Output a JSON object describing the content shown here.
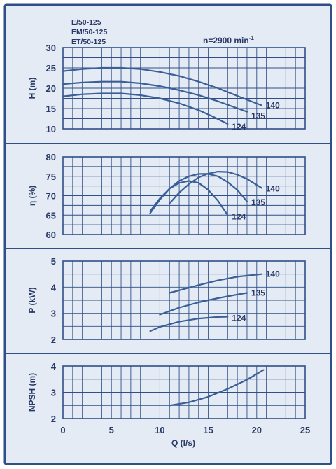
{
  "colors": {
    "background": "#e4ebf5",
    "frame": "#2f4f86",
    "grid": "#2f4f86",
    "curve": "#3a5f97",
    "text": "#2a3a66"
  },
  "header": {
    "models": [
      "E/50-125",
      "EM/50-125",
      "ET/50-125"
    ],
    "speed_label": "n=2900 min",
    "speed_exponent": "-1"
  },
  "x_axis": {
    "label": "Q (l/s)",
    "range": [
      0,
      25
    ],
    "ticks": [
      "0",
      "5",
      "10",
      "15",
      "20",
      "25"
    ]
  },
  "chart_data": [
    {
      "type": "line",
      "ylabel": "H (m)",
      "ylim": [
        10,
        30
      ],
      "yticks": [
        "10",
        "15",
        "20",
        "25",
        "30"
      ],
      "xlim": [
        0,
        25
      ],
      "grid": true,
      "series": [
        {
          "name": "140",
          "x": [
            0,
            2,
            4,
            6,
            8,
            10,
            12,
            14,
            16,
            18,
            20.5
          ],
          "y": [
            24.2,
            24.7,
            25.0,
            25.0,
            24.7,
            24.0,
            23.0,
            21.6,
            20.0,
            18.1,
            15.8
          ]
        },
        {
          "name": "135",
          "x": [
            0,
            2,
            4,
            6,
            8,
            10,
            12,
            14,
            16,
            19
          ],
          "y": [
            21.0,
            21.4,
            21.6,
            21.6,
            21.2,
            20.5,
            19.5,
            18.3,
            16.8,
            14.2
          ]
        },
        {
          "name": "124",
          "x": [
            0,
            2,
            4,
            6,
            8,
            10,
            12,
            14,
            15.5,
            17
          ],
          "y": [
            18.0,
            18.5,
            18.7,
            18.7,
            18.3,
            17.5,
            16.3,
            14.6,
            13.0,
            11.2
          ]
        }
      ]
    },
    {
      "type": "line",
      "ylabel": "η (%)",
      "ylim": [
        60,
        80
      ],
      "yticks": [
        "60",
        "65",
        "70",
        "75",
        "80"
      ],
      "xlim": [
        0,
        25
      ],
      "grid": true,
      "series": [
        {
          "name": "140",
          "x": [
            11,
            12,
            13,
            14,
            15,
            16,
            17,
            18,
            19,
            20.5
          ],
          "y": [
            68.0,
            70.8,
            73.0,
            74.7,
            75.7,
            76.2,
            76.1,
            75.4,
            74.3,
            72.0
          ]
        },
        {
          "name": "135",
          "x": [
            9,
            10,
            11,
            12,
            13,
            14,
            15,
            16,
            17,
            18,
            19
          ],
          "y": [
            65.5,
            69.0,
            71.8,
            73.8,
            75.0,
            75.6,
            75.6,
            75.0,
            73.5,
            71.5,
            68.5
          ]
        },
        {
          "name": "124",
          "x": [
            9,
            10,
            11,
            12,
            13,
            14,
            15,
            16,
            17
          ],
          "y": [
            66.0,
            69.3,
            71.8,
            73.3,
            73.8,
            73.3,
            71.5,
            68.7,
            65.0
          ]
        }
      ]
    },
    {
      "type": "line",
      "ylabel": "P (kW)",
      "ylim": [
        2,
        5
      ],
      "yticks": [
        "2",
        "3",
        "4",
        "5"
      ],
      "xlim": [
        0,
        25
      ],
      "grid": true,
      "series": [
        {
          "name": "140",
          "x": [
            11,
            12,
            14,
            16,
            18,
            20.5
          ],
          "y": [
            3.78,
            3.88,
            4.08,
            4.26,
            4.4,
            4.5
          ]
        },
        {
          "name": "135",
          "x": [
            10,
            12,
            14,
            16,
            18,
            19
          ],
          "y": [
            2.95,
            3.22,
            3.42,
            3.58,
            3.72,
            3.78
          ]
        },
        {
          "name": "124",
          "x": [
            9,
            10,
            12,
            14,
            16,
            17
          ],
          "y": [
            2.32,
            2.48,
            2.68,
            2.8,
            2.86,
            2.87
          ]
        }
      ]
    },
    {
      "type": "line",
      "ylabel": "NPSH (m)",
      "ylim": [
        2,
        4
      ],
      "yticks": [
        "2",
        "3",
        "4"
      ],
      "xlim": [
        0,
        25
      ],
      "grid": true,
      "series": [
        {
          "x": [
            11,
            13,
            15,
            17,
            19,
            20.7
          ],
          "y": [
            2.5,
            2.62,
            2.83,
            3.13,
            3.48,
            3.85
          ]
        }
      ]
    }
  ]
}
